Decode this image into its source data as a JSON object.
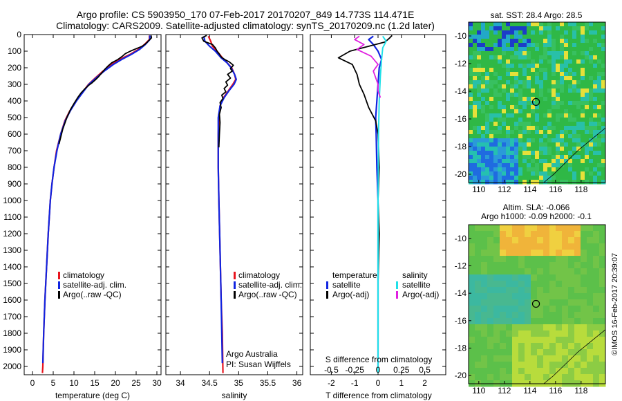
{
  "header": {
    "line1": "Argo profile: CS 5903950_170 07-Feb-2017 20170207_849 14.773S 114.471E",
    "line2": "Climatology: CARS2009. Satellite-adjusted climatology: synTS_20170209.nc (1.2d later)"
  },
  "credits": {
    "argo_line1": "Argo Australia",
    "argo_line2": "PI: Susan Wijffels",
    "imos": "©IMOS 16-Feb-2017 20:39:07"
  },
  "colors": {
    "climatology": "#e8141e",
    "satellite": "#1024e0",
    "argo": "#000000",
    "salinity_sat": "#20e0e8",
    "salinity_argo": "#e020e0",
    "sst_base": "#2fb846",
    "sla_base": "#5cc04a"
  },
  "chart_data": [
    {
      "type": "line",
      "xlabel": "temperature (deg C)",
      "xlim": [
        -2,
        31
      ],
      "ylim": [
        2050,
        0
      ],
      "xticks": [
        "0",
        "5",
        "10",
        "15",
        "20",
        "25",
        "30"
      ],
      "yticks": [
        "0",
        "100",
        "200",
        "300",
        "400",
        "500",
        "600",
        "700",
        "800",
        "900",
        "1000",
        "1100",
        "1200",
        "1300",
        "1400",
        "1500",
        "1600",
        "1700",
        "1800",
        "1900",
        "2000"
      ],
      "legend": [
        "climatology",
        "satellite-adj. clim.",
        "Argo(..raw -QC)"
      ],
      "legend_position": "lower-center",
      "series": [
        {
          "name": "climatology",
          "points": [
            [
              28.2,
              5
            ],
            [
              28.2,
              30
            ],
            [
              27.0,
              60
            ],
            [
              25.5,
              90
            ],
            [
              23.5,
              120
            ],
            [
              21.0,
              150
            ],
            [
              19.0,
              180
            ],
            [
              17.0,
              220
            ],
            [
              15.2,
              260
            ],
            [
              13.5,
              300
            ],
            [
              12.0,
              350
            ],
            [
              10.5,
              400
            ],
            [
              9.0,
              460
            ],
            [
              7.8,
              520
            ],
            [
              6.8,
              600
            ],
            [
              5.8,
              700
            ],
            [
              5.2,
              800
            ],
            [
              4.7,
              900
            ],
            [
              4.3,
              1000
            ],
            [
              3.8,
              1200
            ],
            [
              3.4,
              1400
            ],
            [
              3.0,
              1600
            ],
            [
              2.7,
              1800
            ],
            [
              2.5,
              2000
            ],
            [
              2.4,
              2040
            ]
          ]
        },
        {
          "name": "satellite-adj. clim.",
          "points": [
            [
              28.3,
              5
            ],
            [
              28.3,
              30
            ],
            [
              27.2,
              60
            ],
            [
              25.8,
              90
            ],
            [
              23.8,
              120
            ],
            [
              21.5,
              150
            ],
            [
              19.5,
              180
            ],
            [
              17.3,
              220
            ],
            [
              15.4,
              260
            ],
            [
              13.6,
              300
            ],
            [
              12.1,
              350
            ],
            [
              10.6,
              400
            ],
            [
              9.1,
              460
            ],
            [
              7.9,
              520
            ],
            [
              6.8,
              600
            ],
            [
              5.9,
              700
            ],
            [
              5.2,
              800
            ],
            [
              4.7,
              900
            ],
            [
              4.3,
              1000
            ],
            [
              3.8,
              1200
            ],
            [
              3.4,
              1400
            ],
            [
              3.0,
              1600
            ],
            [
              2.7,
              1800
            ],
            [
              2.5,
              1980
            ]
          ]
        },
        {
          "name": "Argo(..raw -QC)",
          "points": [
            [
              28.6,
              5
            ],
            [
              28.7,
              20
            ],
            [
              27.9,
              40
            ],
            [
              27.3,
              55
            ],
            [
              26.5,
              70
            ],
            [
              25.0,
              85
            ],
            [
              23.6,
              100
            ],
            [
              22.4,
              115
            ],
            [
              21.7,
              130
            ],
            [
              20.6,
              150
            ],
            [
              19.1,
              170
            ],
            [
              18.2,
              190
            ],
            [
              17.6,
              205
            ],
            [
              17.0,
              222
            ],
            [
              16.5,
              237
            ],
            [
              15.9,
              255
            ],
            [
              15.2,
              272
            ],
            [
              14.4,
              290
            ],
            [
              13.6,
              305
            ],
            [
              12.7,
              325
            ],
            [
              11.7,
              352
            ],
            [
              10.9,
              380
            ],
            [
              10.1,
              412
            ],
            [
              9.2,
              450
            ],
            [
              8.3,
              500
            ],
            [
              7.3,
              570
            ],
            [
              6.4,
              660
            ]
          ]
        }
      ]
    },
    {
      "type": "line",
      "xlabel": "salinity",
      "xlim": [
        33.75,
        36.1
      ],
      "ylim": [
        2050,
        0
      ],
      "xticks": [
        "34",
        "34.5",
        "35",
        "35.5",
        "36"
      ],
      "legend": [
        "climatology",
        "satellite-adj. clim.",
        "Argo(..raw -QC)"
      ],
      "legend_position": "lower-right",
      "series": [
        {
          "name": "climatology",
          "points": [
            [
              34.48,
              10
            ],
            [
              34.52,
              40
            ],
            [
              34.55,
              70
            ],
            [
              34.63,
              100
            ],
            [
              34.72,
              140
            ],
            [
              34.8,
              170
            ],
            [
              34.88,
              200
            ],
            [
              34.93,
              240
            ],
            [
              34.95,
              270
            ],
            [
              34.9,
              300
            ],
            [
              34.82,
              340
            ],
            [
              34.74,
              380
            ],
            [
              34.68,
              430
            ],
            [
              34.66,
              500
            ],
            [
              34.65,
              600
            ],
            [
              34.65,
              800
            ],
            [
              34.66,
              1000
            ],
            [
              34.68,
              1300
            ],
            [
              34.7,
              1600
            ],
            [
              34.72,
              1800
            ],
            [
              34.73,
              2040
            ]
          ]
        },
        {
          "name": "satellite-adj. clim.",
          "points": [
            [
              34.4,
              10
            ],
            [
              34.42,
              40
            ],
            [
              34.5,
              70
            ],
            [
              34.6,
              100
            ],
            [
              34.7,
              140
            ],
            [
              34.8,
              170
            ],
            [
              34.87,
              200
            ],
            [
              34.93,
              240
            ],
            [
              34.96,
              270
            ],
            [
              34.92,
              300
            ],
            [
              34.83,
              340
            ],
            [
              34.75,
              380
            ],
            [
              34.68,
              430
            ],
            [
              34.65,
              500
            ],
            [
              34.65,
              600
            ],
            [
              34.65,
              800
            ],
            [
              34.66,
              1000
            ],
            [
              34.68,
              1300
            ],
            [
              34.7,
              1600
            ],
            [
              34.72,
              1980
            ]
          ]
        },
        {
          "name": "Argo(..raw -QC)",
          "points": [
            [
              34.45,
              5
            ],
            [
              34.37,
              20
            ],
            [
              34.4,
              40
            ],
            [
              34.55,
              60
            ],
            [
              34.6,
              80
            ],
            [
              34.63,
              100
            ],
            [
              34.67,
              118
            ],
            [
              34.7,
              135
            ],
            [
              34.76,
              150
            ],
            [
              34.84,
              165
            ],
            [
              34.91,
              185
            ],
            [
              34.86,
              205
            ],
            [
              34.89,
              220
            ],
            [
              34.81,
              240
            ],
            [
              34.86,
              262
            ],
            [
              34.78,
              285
            ],
            [
              34.81,
              305
            ],
            [
              34.75,
              325
            ],
            [
              34.78,
              345
            ],
            [
              34.71,
              365
            ],
            [
              34.73,
              385
            ],
            [
              34.68,
              410
            ],
            [
              34.7,
              440
            ],
            [
              34.67,
              480
            ],
            [
              34.68,
              530
            ],
            [
              34.67,
              600
            ],
            [
              34.66,
              680
            ]
          ]
        }
      ]
    },
    {
      "type": "line",
      "xlabel": "T difference from climatology",
      "xlabel_top": "S difference from climatology",
      "xlim": [
        -2.9,
        2.9
      ],
      "ylim": [
        2050,
        0
      ],
      "xticks": [
        "-2",
        "-1",
        "0",
        "1",
        "2"
      ],
      "xticks_top": [
        "-0.5",
        "-0.25",
        "0",
        "0.25",
        "0.5"
      ],
      "legend": [
        "temperature",
        "satellite",
        "Argo(-adj)",
        "salinity",
        "satellite",
        "Argo(-adj)"
      ],
      "legend_position": "lower-center",
      "series": [
        {
          "name": "satellite",
          "points": [
            [
              -0.2,
              10
            ],
            [
              -0.4,
              30
            ],
            [
              -0.2,
              60
            ],
            [
              0.0,
              100
            ],
            [
              0.15,
              150
            ],
            [
              0.05,
              200
            ],
            [
              0.0,
              300
            ],
            [
              -0.05,
              400
            ],
            [
              -0.1,
              500
            ],
            [
              -0.08,
              600
            ],
            [
              -0.05,
              800
            ],
            [
              0.0,
              1000
            ],
            [
              0.0,
              1500
            ],
            [
              0.0,
              2000
            ]
          ]
        },
        {
          "name": "Argo(-adj)",
          "points": [
            [
              0.6,
              5
            ],
            [
              0.5,
              20
            ],
            [
              0.3,
              45
            ],
            [
              -1.2,
              100
            ],
            [
              -1.7,
              140
            ],
            [
              -1.1,
              180
            ],
            [
              -0.9,
              240
            ],
            [
              -0.8,
              300
            ],
            [
              -0.6,
              360
            ],
            [
              -0.4,
              440
            ],
            [
              -0.1,
              520
            ],
            [
              0.0,
              600
            ],
            [
              0.05,
              800
            ],
            [
              0.0,
              1000
            ],
            [
              0.05,
              1200
            ],
            [
              0.0,
              1500
            ],
            [
              0.0,
              1800
            ],
            [
              0.0,
              2000
            ]
          ]
        },
        {
          "name": "satellite",
          "points": [
            [
              0.2,
              10
            ],
            [
              0.35,
              40
            ],
            [
              0.2,
              80
            ],
            [
              0.15,
              150
            ],
            [
              0.1,
              250
            ],
            [
              0.05,
              400
            ],
            [
              0.02,
              600
            ],
            [
              0.0,
              1000
            ],
            [
              0.0,
              1500
            ],
            [
              0.0,
              2040
            ]
          ]
        },
        {
          "name": "Argo(-adj)",
          "points": [
            [
              -0.8,
              10
            ],
            [
              -1.0,
              30
            ],
            [
              -0.6,
              60
            ],
            [
              -0.9,
              90
            ],
            [
              -0.3,
              130
            ],
            [
              0.0,
              180
            ],
            [
              -0.2,
              220
            ],
            [
              -0.1,
              260
            ],
            [
              0.0,
              300
            ],
            [
              0.0,
              340
            ],
            [
              0.1,
              380
            ]
          ]
        }
      ]
    },
    {
      "type": "heatmap",
      "title": "sat. SST: 28.4  Argo: 28.5",
      "xlim": [
        109.2,
        119.9
      ],
      "ylim": [
        -20.6,
        -9.0
      ],
      "xticks": [
        "110",
        "112",
        "114",
        "116",
        "118"
      ],
      "yticks": [
        "-10",
        "-12",
        "-14",
        "-16",
        "-18",
        "-20"
      ],
      "marker": {
        "lon": 114.471,
        "lat": -14.773
      }
    },
    {
      "type": "heatmap",
      "title": "Altim. SLA: -0.066",
      "subtitle": "Argo h1000: -0.09 h2000: -0.1",
      "xlim": [
        109.2,
        119.9
      ],
      "ylim": [
        -20.6,
        -9.0
      ],
      "xticks": [
        "110",
        "112",
        "114",
        "116",
        "118"
      ],
      "yticks": [
        "-10",
        "-12",
        "-14",
        "-16",
        "-18",
        "-20"
      ],
      "marker": {
        "lon": 114.471,
        "lat": -14.773
      }
    }
  ]
}
